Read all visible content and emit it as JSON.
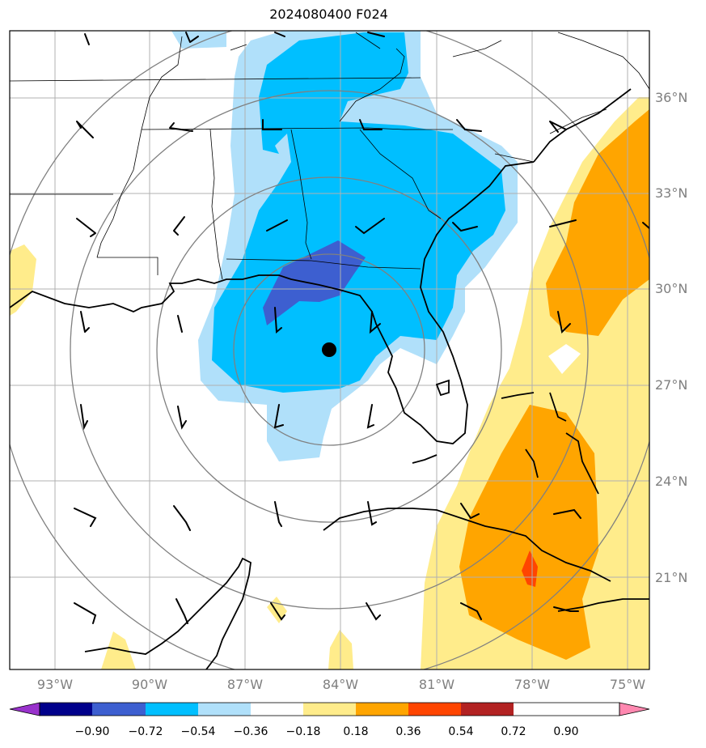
{
  "title": "2024080400 F024",
  "map": {
    "lat_labels": [
      "36°N",
      "33°N",
      "30°N",
      "27°N",
      "24°N",
      "21°N"
    ],
    "lon_labels": [
      "93°W",
      "90°W",
      "87°W",
      "84°W",
      "81°W",
      "78°W",
      "75°W"
    ],
    "center_marker": {
      "lon": -84.3,
      "lat": 28.1
    }
  },
  "colorbar": {
    "levels": [
      "−0.90",
      "−0.72",
      "−0.54",
      "−0.36",
      "−0.18",
      "0.18",
      "0.36",
      "0.54",
      "0.72",
      "0.90"
    ],
    "colors": [
      "#9932cc",
      "#00008b",
      "#3d5fd0",
      "#00bfff",
      "#b0e0fa",
      "#ffffff",
      "#ffec8b",
      "#ffa500",
      "#ff4500",
      "#b22222",
      "#ff88b0"
    ]
  },
  "fill_colors": {
    "light_blue": "#b0e0fa",
    "blue": "#00bfff",
    "dark_blue": "#3d5fd0",
    "light_yellow": "#ffec8b",
    "orange": "#ffa500",
    "red": "#ff4500"
  }
}
